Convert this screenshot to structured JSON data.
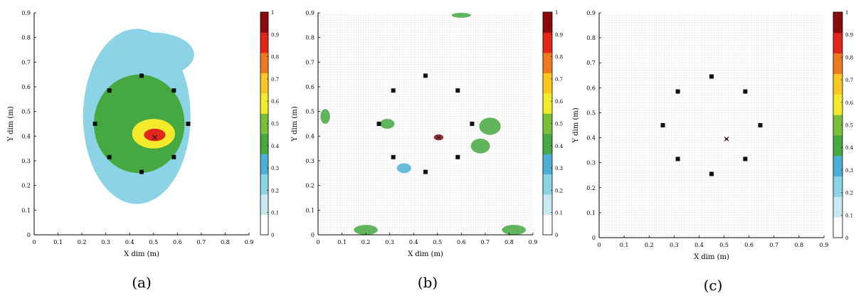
{
  "chart_data": [
    {
      "type": "heatmap",
      "panel_label": "(a)",
      "xlabel": "X dim (m)",
      "ylabel": "Y dim (m)",
      "xlim": [
        0,
        0.9
      ],
      "ylim": [
        0,
        0.9
      ],
      "xticks": [
        "0",
        "0.1",
        "0.2",
        "0.3",
        "0.4",
        "0.5",
        "0.6",
        "0.7",
        "0.8",
        "0.9"
      ],
      "yticks": [
        "0",
        "0.1",
        "0.2",
        "0.3",
        "0.4",
        "0.5",
        "0.6",
        "0.7",
        "0.8",
        "0.9"
      ],
      "colorbar_ticks": [
        "0",
        "0.1",
        "0.2",
        "0.3",
        "0.4",
        "0.5",
        "0.6",
        "0.7",
        "0.8",
        "0.9",
        "1"
      ],
      "colorbar_range": [
        0,
        1
      ],
      "colormap": [
        "#ffffff",
        "#c9e9f2",
        "#8cd3e6",
        "#4cb0d6",
        "#45a840",
        "#79bf3a",
        "#f2ea2a",
        "#f7c820",
        "#ee7a1e",
        "#e2261c",
        "#8b0b0b"
      ],
      "sensors": [
        [
          0.45,
          0.645
        ],
        [
          0.315,
          0.585
        ],
        [
          0.585,
          0.585
        ],
        [
          0.255,
          0.45
        ],
        [
          0.645,
          0.45
        ],
        [
          0.315,
          0.315
        ],
        [
          0.585,
          0.315
        ],
        [
          0.45,
          0.255
        ]
      ],
      "source": [
        0.505,
        0.395
      ],
      "blobs": [
        {
          "x": 0.43,
          "y": 0.48,
          "rx": 0.225,
          "ry": 0.355,
          "v": 0.22
        },
        {
          "x": 0.5,
          "y": 0.73,
          "rx": 0.17,
          "ry": 0.09,
          "v": 0.18
        },
        {
          "x": 0.44,
          "y": 0.45,
          "rx": 0.19,
          "ry": 0.2,
          "v": 0.42
        },
        {
          "x": 0.5,
          "y": 0.41,
          "rx": 0.09,
          "ry": 0.06,
          "v": 0.58
        },
        {
          "x": 0.505,
          "y": 0.405,
          "rx": 0.045,
          "ry": 0.025,
          "v": 0.92
        }
      ]
    },
    {
      "type": "heatmap",
      "panel_label": "(b)",
      "xlabel": "X dim (m)",
      "ylabel": "Y dim (m)",
      "xlim": [
        0,
        0.9
      ],
      "ylim": [
        0,
        0.9
      ],
      "xticks": [
        "0",
        "0.1",
        "0.2",
        "0.3",
        "0.4",
        "0.5",
        "0.6",
        "0.7",
        "0.8",
        "0.9"
      ],
      "yticks": [
        "0",
        "0.1",
        "0.2",
        "0.3",
        "0.4",
        "0.5",
        "0.6",
        "0.7",
        "0.8",
        "0.9"
      ],
      "colorbar_ticks": [
        "0",
        "0.1",
        "0.2",
        "0.3",
        "0.4",
        "0.5",
        "0.6",
        "0.7",
        "0.8",
        "0.9",
        "1"
      ],
      "colorbar_range": [
        0,
        1
      ],
      "colormap": [
        "#ffffff",
        "#c9e9f2",
        "#8cd3e6",
        "#4cb0d6",
        "#45a840",
        "#79bf3a",
        "#f2ea2a",
        "#f7c820",
        "#ee7a1e",
        "#e2261c",
        "#8b0b0b"
      ],
      "sensors": [
        [
          0.45,
          0.645
        ],
        [
          0.315,
          0.585
        ],
        [
          0.585,
          0.585
        ],
        [
          0.255,
          0.45
        ],
        [
          0.645,
          0.45
        ],
        [
          0.315,
          0.315
        ],
        [
          0.585,
          0.315
        ],
        [
          0.45,
          0.255
        ]
      ],
      "source": [
        0.505,
        0.395
      ],
      "blobs": [
        {
          "x": 0.72,
          "y": 0.44,
          "rx": 0.045,
          "ry": 0.035,
          "v": 0.42
        },
        {
          "x": 0.68,
          "y": 0.36,
          "rx": 0.04,
          "ry": 0.03,
          "v": 0.4
        },
        {
          "x": 0.29,
          "y": 0.45,
          "rx": 0.03,
          "ry": 0.02,
          "v": 0.42
        },
        {
          "x": 0.505,
          "y": 0.395,
          "rx": 0.02,
          "ry": 0.012,
          "v": 0.95
        },
        {
          "x": 0.6,
          "y": 0.89,
          "rx": 0.04,
          "ry": 0.01,
          "v": 0.4
        },
        {
          "x": 0.03,
          "y": 0.48,
          "rx": 0.02,
          "ry": 0.03,
          "v": 0.35
        },
        {
          "x": 0.36,
          "y": 0.27,
          "rx": 0.03,
          "ry": 0.02,
          "v": 0.3
        },
        {
          "x": 0.2,
          "y": 0.02,
          "rx": 0.05,
          "ry": 0.02,
          "v": 0.35
        },
        {
          "x": 0.82,
          "y": 0.02,
          "rx": 0.05,
          "ry": 0.02,
          "v": 0.38
        }
      ]
    },
    {
      "type": "heatmap",
      "panel_label": "(c)",
      "xlabel": "X dim (m)",
      "ylabel": "Y dim (m)",
      "xlim": [
        0,
        0.9
      ],
      "ylim": [
        0,
        0.9
      ],
      "xticks": [
        "0",
        "0.1",
        "0.2",
        "0.3",
        "0.4",
        "0.5",
        "0.6",
        "0.7",
        "0.8",
        "0.9"
      ],
      "yticks": [
        "0",
        "0.1",
        "0.2",
        "0.3",
        "0.4",
        "0.5",
        "0.6",
        "0.7",
        "0.8",
        "0.9"
      ],
      "colorbar_ticks": [
        "0",
        "0.1",
        "0.2",
        "0.3",
        "0.4",
        "0.5",
        "0.6",
        "0.7",
        "0.8",
        "0.9",
        "1"
      ],
      "colorbar_range": [
        0,
        1
      ],
      "colormap": [
        "#ffffff",
        "#c9e9f2",
        "#8cd3e6",
        "#4cb0d6",
        "#45a840",
        "#79bf3a",
        "#f2ea2a",
        "#f7c820",
        "#ee7a1e",
        "#e2261c",
        "#8b0b0b"
      ],
      "sensors": [
        [
          0.45,
          0.645
        ],
        [
          0.315,
          0.585
        ],
        [
          0.585,
          0.585
        ],
        [
          0.255,
          0.45
        ],
        [
          0.645,
          0.45
        ],
        [
          0.315,
          0.315
        ],
        [
          0.585,
          0.315
        ],
        [
          0.45,
          0.255
        ]
      ],
      "source": [
        0.51,
        0.395
      ],
      "blobs": [
        {
          "x": 0.51,
          "y": 0.395,
          "rx": 0.006,
          "ry": 0.004,
          "v": 0.95
        }
      ]
    }
  ]
}
